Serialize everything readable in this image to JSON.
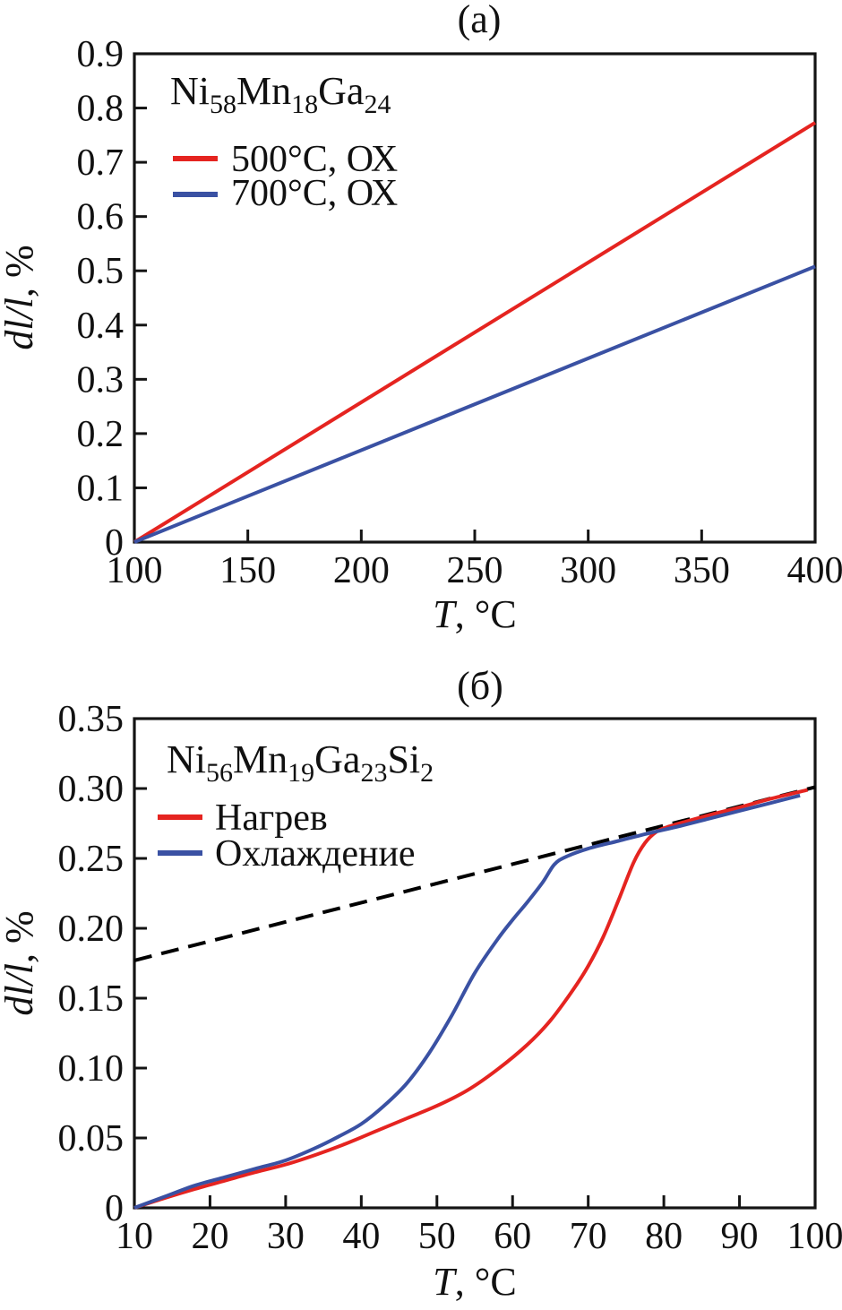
{
  "figure": {
    "description": "Two-panel dilatometry figure: thermal expansion dl/l (%) versus temperature T (C)",
    "colors": {
      "red": "#e52420",
      "blue": "#3a51a3",
      "dashed_black": "#000000",
      "frame": "#141414",
      "text": "#111111"
    }
  },
  "chart_data": [
    {
      "id": "a",
      "type": "line",
      "panel_label": "(a)",
      "xlabel_italic": "T",
      "xlabel_rest": ", °C",
      "ylabel_italic": "dl/l",
      "ylabel_rest": ", %",
      "x_range": [
        100,
        400
      ],
      "y_range": [
        0,
        0.9
      ],
      "x_ticks": [
        100,
        150,
        200,
        250,
        300,
        350,
        400
      ],
      "x_tick_labels": [
        "100",
        "150",
        "200",
        "250",
        "300",
        "350",
        "400"
      ],
      "y_ticks": [
        0,
        0.1,
        0.2,
        0.3,
        0.4,
        0.5,
        0.6,
        0.7,
        0.8,
        0.9
      ],
      "y_tick_labels": [
        "0",
        "0.1",
        "0.2",
        "0.3",
        "0.4",
        "0.5",
        "0.6",
        "0.7",
        "0.8",
        "0.9"
      ],
      "grid": false,
      "legend_position": "top-left-inside",
      "legend": {
        "formula_parts": [
          [
            "Ni",
            "58"
          ],
          [
            "Mn",
            "18"
          ],
          [
            "Ga",
            "24"
          ]
        ],
        "entries": [
          {
            "label": "500°C, ОХ",
            "color": "#e52420"
          },
          {
            "label": "700°C, ОХ",
            "color": "#3a51a3"
          }
        ]
      },
      "series": [
        {
          "name": "annealed-500C",
          "color": "#e52420",
          "width": 4,
          "smooth": false,
          "points": [
            [
              100,
              0
            ],
            [
              400,
              0.773
            ]
          ]
        },
        {
          "name": "annealed-700C",
          "color": "#3a51a3",
          "width": 4,
          "smooth": false,
          "points": [
            [
              100,
              0
            ],
            [
              400,
              0.508
            ]
          ]
        }
      ]
    },
    {
      "id": "b",
      "type": "line",
      "panel_label": "(б)",
      "xlabel_italic": "T",
      "xlabel_rest": ", °C",
      "ylabel_italic": "dl/l",
      "ylabel_rest": ", %",
      "x_range": [
        10,
        100
      ],
      "y_range": [
        0,
        0.35
      ],
      "x_ticks": [
        10,
        20,
        30,
        40,
        50,
        60,
        70,
        80,
        90,
        100
      ],
      "x_tick_labels": [
        "10",
        "20",
        "30",
        "40",
        "50",
        "60",
        "70",
        "80",
        "90",
        "100"
      ],
      "y_ticks": [
        0,
        0.05,
        0.1,
        0.15,
        0.2,
        0.25,
        0.3,
        0.35
      ],
      "y_tick_labels": [
        "0",
        "0.05",
        "0.10",
        "0.15",
        "0.20",
        "0.25",
        "0.30",
        "0.35"
      ],
      "grid": false,
      "legend_position": "top-left-inside",
      "legend": {
        "formula_parts": [
          [
            "Ni",
            "56"
          ],
          [
            "Mn",
            "19"
          ],
          [
            "Ga",
            "23"
          ],
          [
            "Si",
            "2"
          ]
        ],
        "entries": [
          {
            "label": "Нагрев",
            "color": "#e52420"
          },
          {
            "label": "Охлаждение",
            "color": "#3a51a3"
          }
        ]
      },
      "series": [
        {
          "name": "linear-extrapolation-dashed",
          "color": "#000000",
          "width": 4,
          "smooth": false,
          "dash": [
            20,
            11
          ],
          "points": [
            [
              10,
              0.177
            ],
            [
              100,
              0.301
            ]
          ]
        },
        {
          "name": "heating",
          "color": "#e52420",
          "width": 4,
          "smooth": true,
          "points": [
            [
              10,
              0
            ],
            [
              14,
              0.007
            ],
            [
              18,
              0.0135
            ],
            [
              22,
              0.0195
            ],
            [
              26,
              0.0255
            ],
            [
              30,
              0.031
            ],
            [
              34,
              0.038
            ],
            [
              38,
              0.046
            ],
            [
              42,
              0.055
            ],
            [
              46,
              0.064
            ],
            [
              50,
              0.073
            ],
            [
              54,
              0.084
            ],
            [
              58,
              0.099
            ],
            [
              62,
              0.117
            ],
            [
              65,
              0.134
            ],
            [
              68,
              0.156
            ],
            [
              70,
              0.173
            ],
            [
              72,
              0.194
            ],
            [
              74,
              0.22
            ],
            [
              76,
              0.247
            ],
            [
              77.5,
              0.261
            ],
            [
              79,
              0.269
            ],
            [
              80.5,
              0.2725
            ],
            [
              83,
              0.2765
            ],
            [
              86,
              0.281
            ],
            [
              90,
              0.2865
            ],
            [
              94,
              0.2925
            ],
            [
              99,
              0.299
            ]
          ]
        },
        {
          "name": "cooling",
          "color": "#3a51a3",
          "width": 4,
          "smooth": true,
          "points": [
            [
              10,
              0
            ],
            [
              14,
              0.008
            ],
            [
              18,
              0.016
            ],
            [
              22,
              0.022
            ],
            [
              26,
              0.028
            ],
            [
              30,
              0.034
            ],
            [
              34,
              0.043
            ],
            [
              37,
              0.051
            ],
            [
              40,
              0.06
            ],
            [
              43,
              0.073
            ],
            [
              46,
              0.089
            ],
            [
              49,
              0.111
            ],
            [
              52,
              0.138
            ],
            [
              55,
              0.168
            ],
            [
              58,
              0.192
            ],
            [
              60,
              0.206
            ],
            [
              62,
              0.219
            ],
            [
              64,
              0.233
            ],
            [
              65.5,
              0.2455
            ],
            [
              67,
              0.251
            ],
            [
              70,
              0.257
            ],
            [
              74,
              0.2625
            ],
            [
              78,
              0.268
            ],
            [
              82,
              0.273
            ],
            [
              86,
              0.2785
            ],
            [
              90,
              0.284
            ],
            [
              94,
              0.2895
            ],
            [
              98,
              0.295
            ]
          ]
        }
      ]
    }
  ]
}
